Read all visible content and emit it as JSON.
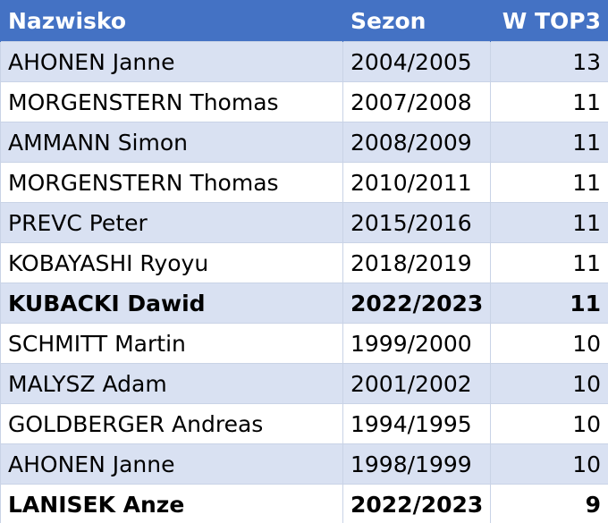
{
  "table": {
    "header": [
      "Nazwisko",
      "Sezon",
      "W TOP3"
    ],
    "rows": [
      {
        "cells": [
          "AHONEN Janne",
          "2004/2005",
          13
        ]
      },
      {
        "cells": [
          "MORGENSTERN Thomas",
          "2007/2008",
          11
        ]
      },
      {
        "cells": [
          "AMMANN Simon",
          "2008/2009",
          11
        ]
      },
      {
        "cells": [
          "MORGENSTERN Thomas",
          "2010/2011",
          11
        ]
      },
      {
        "cells": [
          "PREVC Peter",
          "2015/2016",
          11
        ]
      },
      {
        "cells": [
          "KOBAYASHI Ryoyu",
          "2018/2019",
          11
        ]
      },
      {
        "cells": [
          "KUBACKI Dawid",
          "2022/2023",
          11
        ],
        "bold": true
      },
      {
        "cells": [
          "SCHMITT Martin",
          "1999/2000",
          10
        ]
      },
      {
        "cells": [
          "MALYSZ Adam",
          "2001/2002",
          10
        ]
      },
      {
        "cells": [
          "GOLDBERGER Andreas",
          "1994/1995",
          10
        ]
      },
      {
        "cells": [
          "AHONEN Janne",
          "1998/1999",
          10
        ]
      },
      {
        "cells": [
          "LANISEK Anze",
          "2022/2023",
          9
        ],
        "bold": true
      }
    ]
  }
}
